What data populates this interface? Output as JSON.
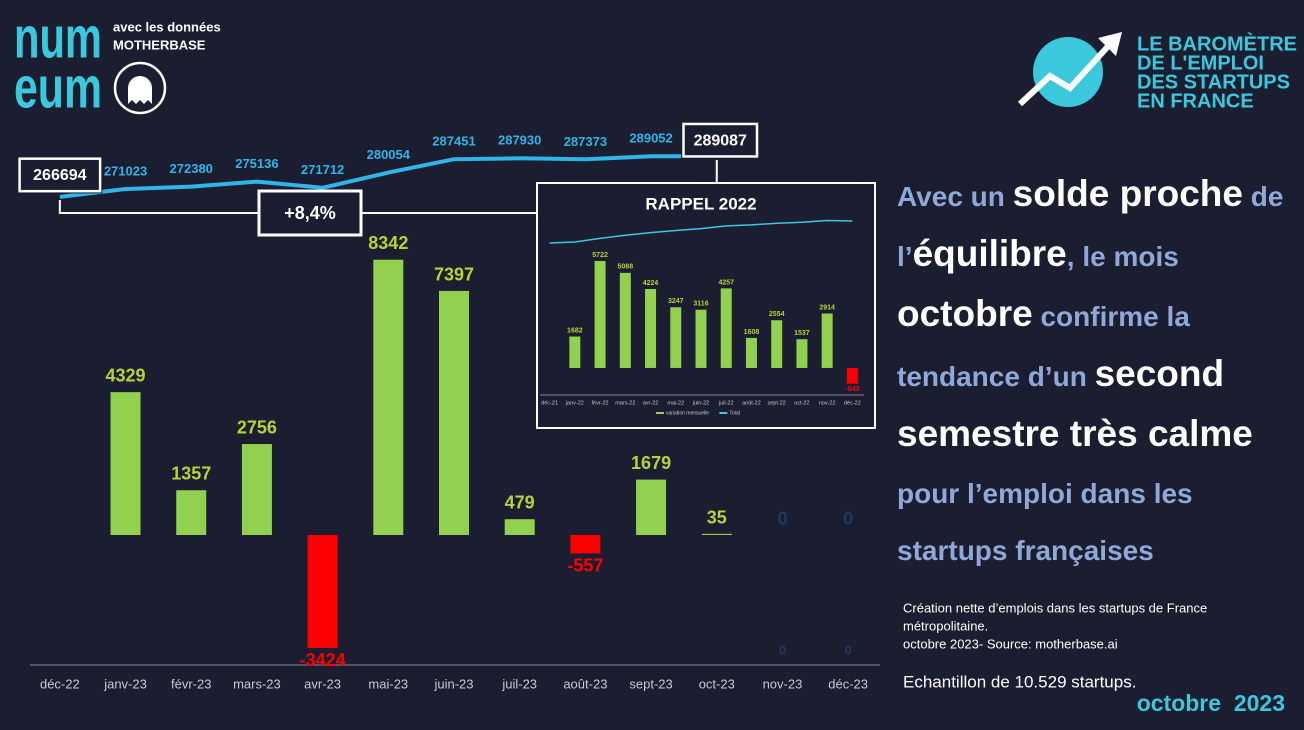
{
  "header": {
    "logo": [
      "num",
      "eum"
    ],
    "source_intro": "avec les données",
    "source_name": "MOTHERBASE",
    "barometre": [
      "LE BAROMÈTRE",
      "DE L'EMPLOI",
      "DES STARTUPS",
      "EN FRANCE"
    ]
  },
  "chart_data": [
    {
      "type": "combo",
      "categories": [
        "déc-22",
        "janv-23",
        "févr-23",
        "mars-23",
        "avr-23",
        "mai-23",
        "juin-23",
        "juil-23",
        "août-23",
        "sept-23",
        "oct-23",
        "nov-23",
        "déc-23"
      ],
      "series": [
        {
          "type": "bar",
          "color": "#92d050",
          "negative_color": "#ff0000",
          "labels": true,
          "values": [
            null,
            4329,
            1357,
            2756,
            -3424,
            8342,
            7397,
            479,
            -557,
            1679,
            35,
            0,
            0
          ]
        },
        {
          "type": "line",
          "axis": "y2",
          "color": "#2fb5e8",
          "labels": true,
          "values": [
            266694,
            271023,
            272380,
            275136,
            271712,
            280054,
            287451,
            287930,
            287373,
            289052,
            289087,
            null,
            null
          ]
        }
      ],
      "ylim": [
        -3500,
        8500
      ],
      "y2lim": [
        210000,
        320000
      ],
      "annotation": "+8,4%",
      "annotations": [
        "0",
        "0"
      ]
    },
    {
      "type": "combo",
      "title": "RAPPEL 2022",
      "categories": [
        "déc-21",
        "janv-22",
        "févr-22",
        "mars-22",
        "avr-22",
        "mai-22",
        "juin-22",
        "juil-22",
        "août-22",
        "sept-22",
        "oct-22",
        "nov-22",
        "déc-22"
      ],
      "series": [
        {
          "name": "variation mensuelle",
          "type": "bar",
          "color": "#92d050",
          "negative_color": "#ff0000",
          "labels": true,
          "values": [
            null,
            1682,
            5722,
            5088,
            4224,
            3247,
            3116,
            4257,
            1608,
            2554,
            1537,
            2914,
            -843
          ]
        },
        {
          "name": "Total",
          "type": "line",
          "axis": "y2",
          "color": "#3cc8dc",
          "labels": false,
          "values": [
            231588,
            233270,
            238992,
            244080,
            248304,
            251551,
            254667,
            258924,
            260532,
            263086,
            264623,
            267537,
            266694
          ]
        }
      ],
      "ylim": [
        -1500,
        6000
      ],
      "y2lim": [
        220000,
        280000
      ]
    }
  ],
  "headline": [
    {
      "text": "Avec un ",
      "bold": false
    },
    {
      "text": "solde proche",
      "bold": true
    },
    {
      "text": " de l’",
      "bold": false
    },
    {
      "text": "équilibre",
      "bold": true
    },
    {
      "text": ", le mois ",
      "bold": false
    },
    {
      "text": "octobre",
      "bold": true
    },
    {
      "text": " confirme la tendance d’un ",
      "bold": false
    },
    {
      "text": "second semestre très calme",
      "bold": true
    },
    {
      "text": " pour l’emploi dans les startups françaises",
      "bold": false
    }
  ],
  "notes": {
    "lines": [
      "Création nette d’emplois dans les startups de France",
      "métropolitaine.",
      "octobre 2023- Source: motherbase.ai"
    ],
    "sample": "Echantillon de 10.529 startups.",
    "period": "octobre  2023"
  }
}
